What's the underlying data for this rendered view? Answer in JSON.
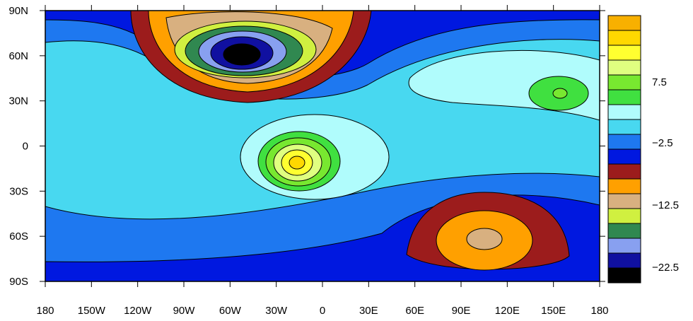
{
  "map": {
    "xtick_labels": [
      "180",
      "150W",
      "120W",
      "90W",
      "60W",
      "30W",
      "0",
      "30E",
      "60E",
      "90E",
      "120E",
      "150E",
      "180"
    ],
    "ytick_labels": [
      "90N",
      "60N",
      "30N",
      "0",
      "30S",
      "60S",
      "90S"
    ]
  },
  "colorbar": {
    "labels": [
      "7.5",
      "−2.5",
      "−12.5",
      "−22.5"
    ],
    "colors": [
      "#f8b000",
      "#ffd800",
      "#ffff30",
      "#e0ff80",
      "#78e830",
      "#40e040",
      "#b0fcfc",
      "#48d8f0",
      "#1e78f0",
      "#0018e0",
      "#9c1c1c",
      "#ffa000",
      "#d8b080",
      "#d0f040",
      "#308850",
      "#88a0f0",
      "#1010a0",
      "#000000"
    ]
  }
}
